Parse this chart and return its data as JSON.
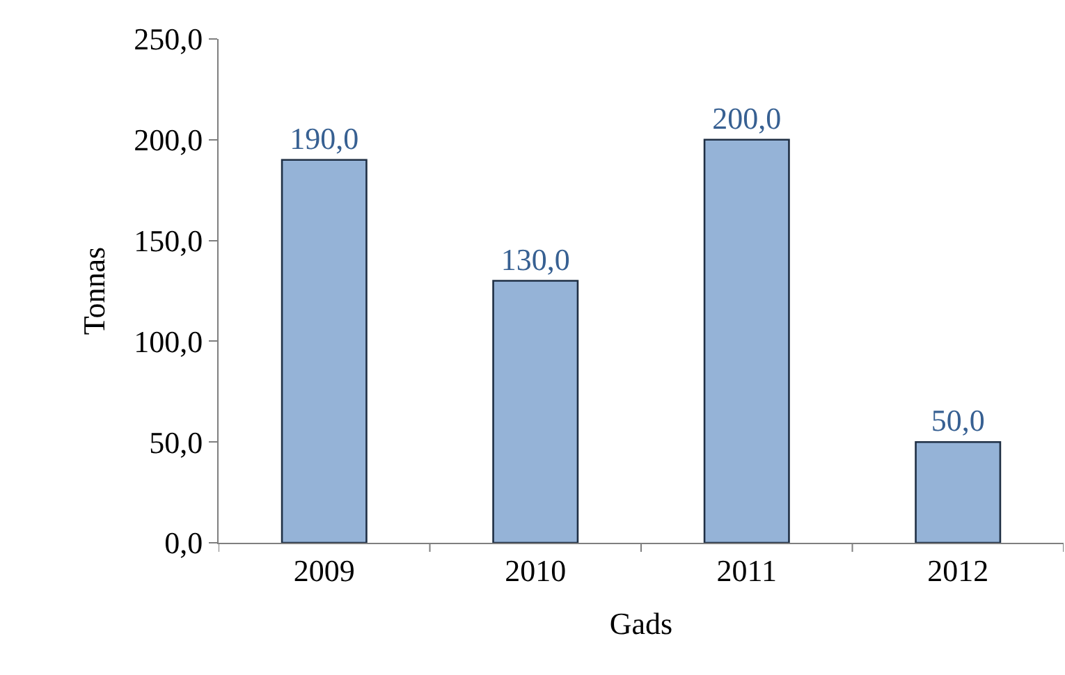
{
  "chart_data": {
    "type": "bar",
    "xlabel": "Gads",
    "ylabel": "Tonnas",
    "categories": [
      "2009",
      "2010",
      "2011",
      "2012"
    ],
    "values": [
      190,
      130,
      200,
      50
    ],
    "value_labels": [
      "190,0",
      "130,0",
      "200,0",
      "50,0"
    ],
    "color": "#95b3d7",
    "ylim": [
      0,
      250
    ],
    "yticks": [
      {
        "value": 0,
        "label": "0,0"
      },
      {
        "value": 50,
        "label": "50,0"
      },
      {
        "value": 100,
        "label": "100,0"
      },
      {
        "value": 150,
        "label": "150,0"
      },
      {
        "value": 200,
        "label": "200,0"
      },
      {
        "value": 250,
        "label": "250,0"
      }
    ],
    "grid": false,
    "legend": false
  }
}
